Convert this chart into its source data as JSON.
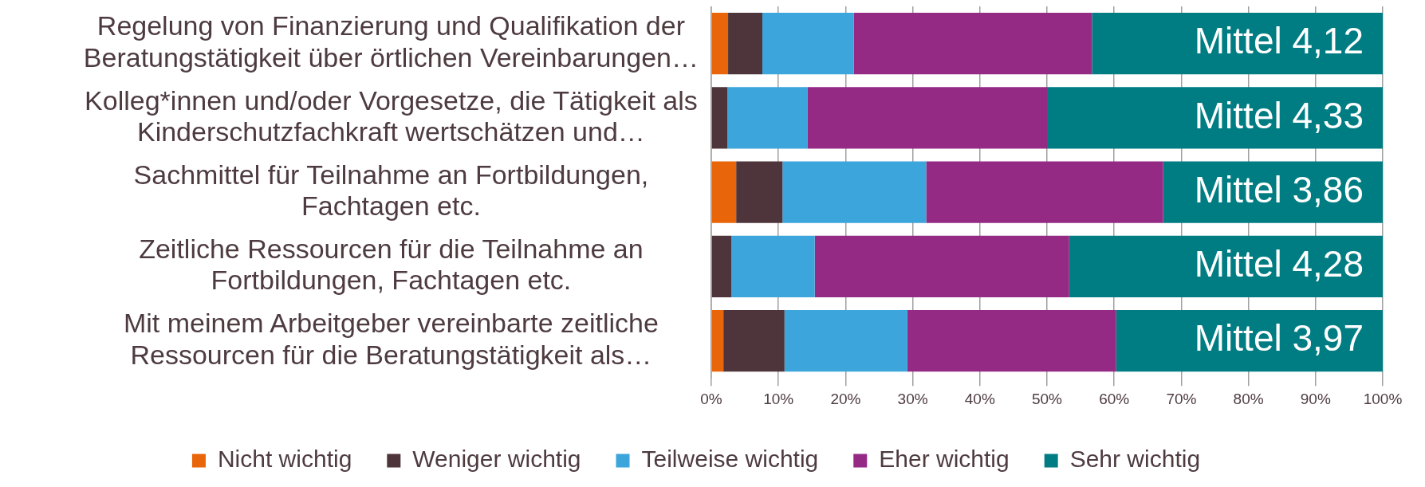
{
  "chart_data": {
    "type": "bar",
    "orientation": "horizontal",
    "stacked": true,
    "categories": [
      "Regelung von Finanzierung und Qualifikation der Beratungstätigkeit über örtlichen Vereinbarungen…",
      "Kolleg*innen und/oder Vorgesetze, die Tätigkeit als Kinderschutzfachkraft wertschätzen und…",
      "Sachmittel für Teilnahme an Fortbildungen, Fachtagen etc.",
      "Zeitliche Ressourcen für die Teilnahme an Fortbildungen, Fachtagen etc.",
      "Mit meinem Arbeitgeber vereinbarte zeitliche Ressourcen für die Beratungstätigkeit als…"
    ],
    "series": [
      {
        "name": "Nicht wichtig",
        "color": "#e8650a",
        "values": [
          2.5,
          0,
          3.7,
          0,
          1.8
        ]
      },
      {
        "name": "Weniger wichtig",
        "color": "#4e353b",
        "values": [
          5.1,
          2.4,
          6.9,
          3.0,
          9.1
        ]
      },
      {
        "name": "Teilweise wichtig",
        "color": "#3ca5dc",
        "values": [
          13.6,
          11.9,
          21.4,
          12.4,
          18.3
        ]
      },
      {
        "name": "Eher wichtig",
        "color": "#952a85",
        "values": [
          35.5,
          35.7,
          35.3,
          37.9,
          31.1
        ]
      },
      {
        "name": "Sehr wichtig",
        "color": "#007d83",
        "values": [
          43.3,
          50.0,
          32.7,
          46.7,
          39.7
        ]
      }
    ],
    "xlim": [
      0,
      100
    ],
    "xticks": [
      {
        "value": 0,
        "label": "0%"
      },
      {
        "value": 10,
        "label": "10%"
      },
      {
        "value": 20,
        "label": "20%"
      },
      {
        "value": 30,
        "label": "30%"
      },
      {
        "value": 40,
        "label": "40%"
      },
      {
        "value": 50,
        "label": "50%"
      },
      {
        "value": 60,
        "label": "60%"
      },
      {
        "value": 70,
        "label": "70%"
      },
      {
        "value": 80,
        "label": "80%"
      },
      {
        "value": 90,
        "label": "90%"
      },
      {
        "value": 100,
        "label": "100%"
      }
    ],
    "grid": "x",
    "legend": "bottom",
    "annotations": [
      "Mittel 4,12",
      "Mittel 4,33",
      "Mittel 3,86",
      "Mittel 4,28",
      "Mittel 3,97"
    ]
  }
}
